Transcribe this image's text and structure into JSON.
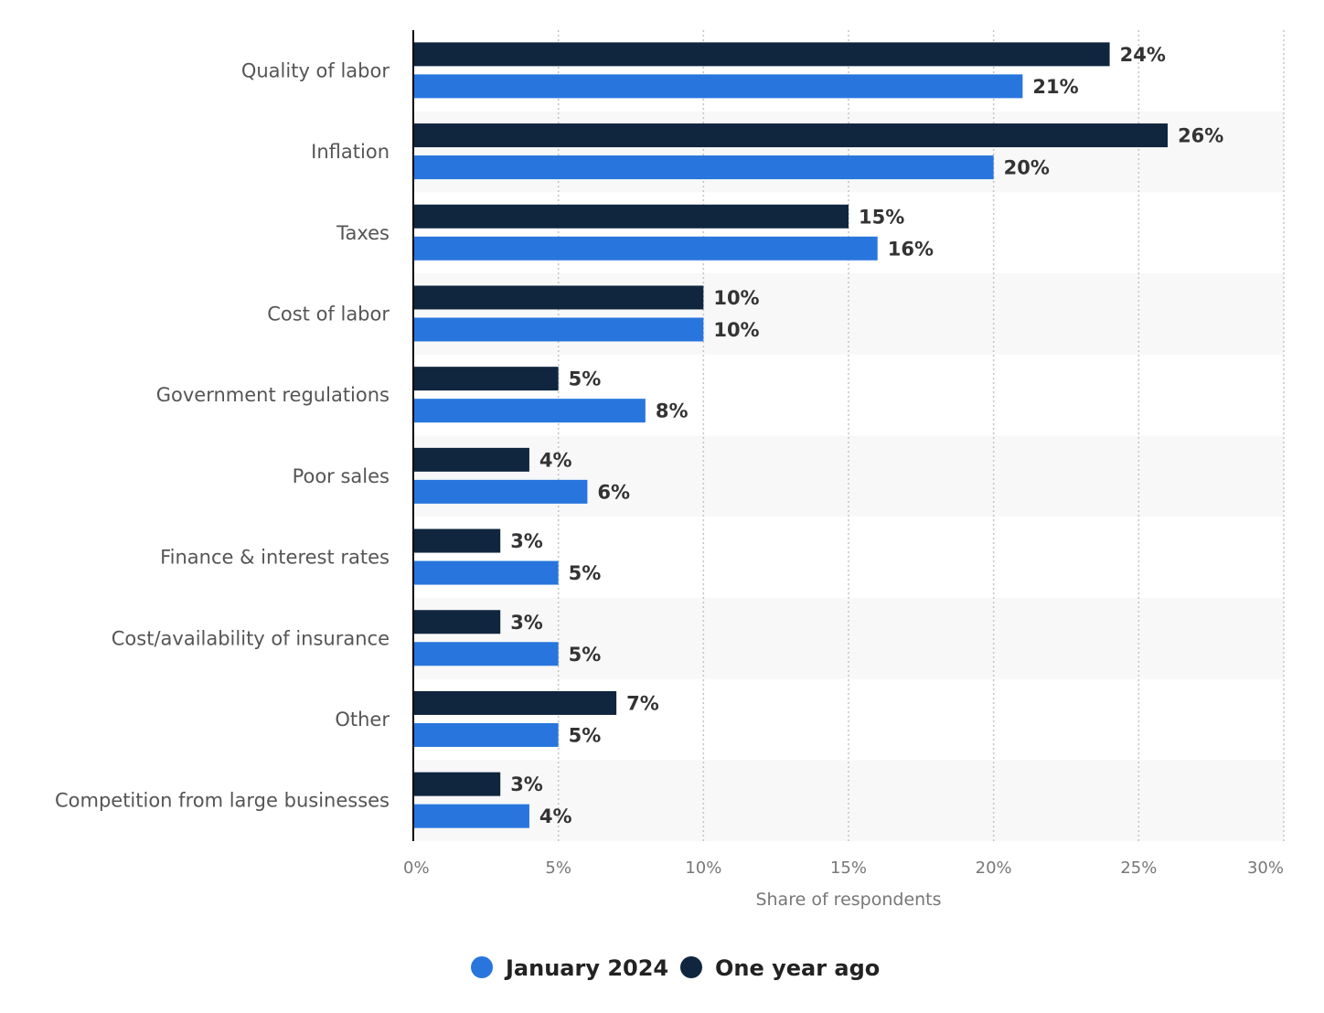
{
  "chart_data": {
    "type": "bar",
    "orientation": "horizontal",
    "categories": [
      "Quality of labor",
      "Inflation",
      "Taxes",
      "Cost of labor",
      "Government regulations",
      "Poor sales",
      "Finance & interest rates",
      "Cost/availability of insurance",
      "Other",
      "Competition from large businesses"
    ],
    "series": [
      {
        "name": "One year ago",
        "color": "#10263f",
        "values": [
          24,
          26,
          15,
          10,
          5,
          4,
          3,
          3,
          7,
          3
        ],
        "labels": [
          "24%",
          "26%",
          "15%",
          "10%",
          "5%",
          "4%",
          "3%",
          "3%",
          "7%",
          "3%"
        ]
      },
      {
        "name": "January 2024",
        "color": "#2876dd",
        "values": [
          21,
          20,
          16,
          10,
          8,
          6,
          5,
          5,
          5,
          4
        ],
        "labels": [
          "21%",
          "20%",
          "16%",
          "10%",
          "8%",
          "6%",
          "5%",
          "5%",
          "5%",
          "4%"
        ]
      }
    ],
    "xlim": [
      0,
      30
    ],
    "xticks": [
      0,
      5,
      10,
      15,
      20,
      25,
      30
    ],
    "xtick_labels": [
      "0%",
      "5%",
      "10%",
      "15%",
      "20%",
      "25%",
      "30%"
    ],
    "xlabel": "Share of respondents",
    "ylabel": "",
    "title": "",
    "grid": "vertical dotted",
    "legend": {
      "position": "bottom",
      "entries": [
        {
          "name": "January 2024",
          "color": "#2876dd"
        },
        {
          "name": "One year ago",
          "color": "#10263f"
        }
      ]
    }
  }
}
